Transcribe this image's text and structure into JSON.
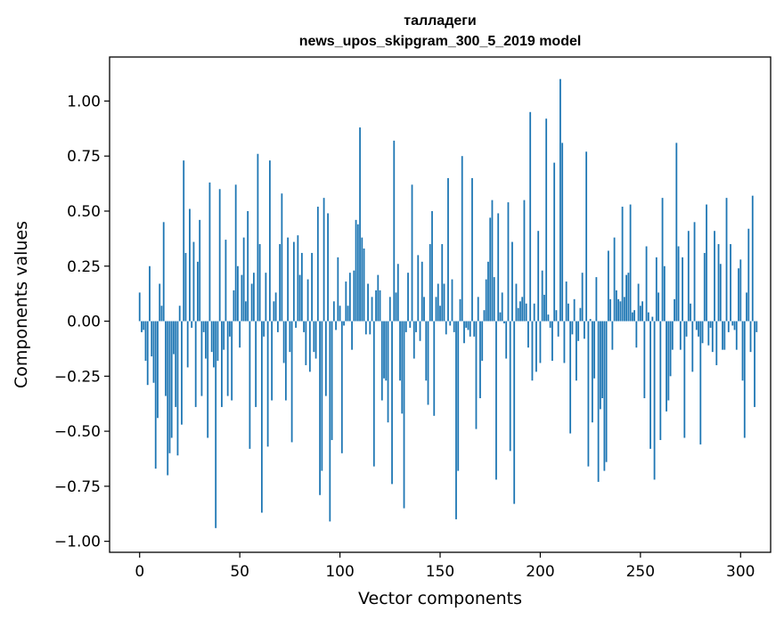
{
  "chart_data": {
    "type": "bar",
    "title": "талладеги",
    "subtitle": "news_upos_skipgram_300_5_2019 model",
    "xlabel": "Vector components",
    "ylabel": "Components values",
    "xlim": [
      -15,
      315
    ],
    "ylim": [
      -1.05,
      1.2
    ],
    "x_ticks": [
      0,
      50,
      100,
      150,
      200,
      250,
      300
    ],
    "x_tick_labels": [
      "0",
      "50",
      "100",
      "150",
      "200",
      "250",
      "300"
    ],
    "y_ticks": [
      -1.0,
      -0.75,
      -0.5,
      -0.25,
      0.0,
      0.25,
      0.5,
      0.75,
      1.0
    ],
    "y_tick_labels": [
      "−1.00",
      "−0.75",
      "−0.50",
      "−0.25",
      "0.00",
      "0.25",
      "0.50",
      "0.75",
      "1.00"
    ],
    "bar_color": "#1f77b4",
    "grid": false,
    "legend": "none",
    "values": [
      0.13,
      -0.05,
      -0.04,
      -0.18,
      -0.29,
      0.25,
      -0.16,
      -0.28,
      -0.67,
      -0.44,
      0.17,
      0.07,
      0.45,
      -0.34,
      -0.7,
      -0.6,
      -0.53,
      -0.15,
      -0.39,
      -0.61,
      0.07,
      -0.47,
      0.73,
      0.31,
      -0.21,
      0.51,
      -0.03,
      0.36,
      -0.39,
      0.27,
      0.46,
      -0.34,
      -0.05,
      -0.17,
      -0.53,
      0.63,
      -0.14,
      -0.21,
      -0.94,
      -0.18,
      0.6,
      -0.39,
      -0.13,
      0.37,
      -0.34,
      -0.07,
      -0.36,
      0.14,
      0.62,
      0.25,
      -0.12,
      0.21,
      0.38,
      0.09,
      0.5,
      -0.58,
      0.17,
      0.22,
      -0.39,
      0.76,
      0.35,
      -0.87,
      -0.07,
      0.22,
      -0.57,
      0.73,
      -0.36,
      0.09,
      0.13,
      -0.05,
      0.35,
      0.58,
      -0.19,
      -0.36,
      0.38,
      -0.14,
      -0.55,
      0.36,
      -0.03,
      0.39,
      0.21,
      0.31,
      -0.05,
      -0.2,
      0.19,
      -0.23,
      0.31,
      -0.14,
      -0.17,
      0.52,
      -0.79,
      -0.68,
      0.56,
      -0.34,
      0.49,
      -0.91,
      -0.54,
      0.09,
      -0.04,
      0.29,
      0.07,
      -0.6,
      -0.02,
      0.18,
      0.07,
      0.22,
      -0.13,
      0.23,
      0.46,
      0.44,
      0.88,
      0.38,
      0.33,
      -0.06,
      0.17,
      -0.06,
      0.11,
      -0.66,
      0.14,
      0.21,
      0.14,
      -0.36,
      -0.26,
      -0.27,
      -0.46,
      0.11,
      -0.74,
      0.82,
      0.13,
      0.26,
      -0.27,
      -0.42,
      -0.85,
      -0.05,
      0.22,
      -0.03,
      0.62,
      -0.17,
      -0.05,
      0.3,
      -0.09,
      0.27,
      0.11,
      -0.27,
      -0.38,
      0.35,
      0.5,
      -0.43,
      0.11,
      0.17,
      0.07,
      0.35,
      0.17,
      -0.06,
      0.65,
      -0.02,
      0.19,
      -0.05,
      -0.9,
      -0.68,
      0.1,
      0.75,
      -0.1,
      -0.03,
      -0.04,
      -0.07,
      0.65,
      -0.07,
      -0.49,
      0.11,
      -0.35,
      -0.18,
      0.05,
      0.19,
      0.27,
      0.47,
      0.55,
      0.2,
      -0.72,
      0.49,
      0.04,
      0.13,
      -0.01,
      -0.17,
      0.54,
      -0.59,
      0.36,
      -0.83,
      0.17,
      0.06,
      0.09,
      0.11,
      0.55,
      0.08,
      -0.12,
      0.95,
      -0.27,
      0.08,
      -0.23,
      0.41,
      -0.19,
      0.23,
      0.12,
      0.92,
      0.03,
      -0.03,
      -0.18,
      0.72,
      0.05,
      -0.07,
      1.1,
      0.81,
      -0.19,
      0.18,
      0.08,
      -0.51,
      -0.06,
      0.1,
      -0.27,
      -0.09,
      0.06,
      0.22,
      -0.08,
      0.77,
      -0.66,
      0.01,
      -0.46,
      -0.26,
      0.2,
      -0.73,
      -0.4,
      -0.35,
      -0.68,
      -0.64,
      0.32,
      0.1,
      -0.13,
      0.38,
      0.14,
      0.1,
      0.09,
      0.52,
      0.11,
      0.21,
      0.22,
      0.53,
      0.04,
      0.05,
      -0.12,
      0.17,
      0.07,
      0.09,
      -0.35,
      0.34,
      0.04,
      -0.58,
      0.02,
      -0.72,
      0.29,
      0.13,
      -0.54,
      0.56,
      0.25,
      -0.41,
      -0.36,
      -0.25,
      -0.13,
      0.1,
      0.81,
      0.34,
      -0.13,
      0.29,
      -0.53,
      -0.07,
      0.41,
      0.08,
      -0.23,
      0.45,
      -0.04,
      -0.07,
      -0.56,
      -0.1,
      0.31,
      0.53,
      -0.11,
      -0.03,
      -0.14,
      0.41,
      -0.2,
      0.35,
      0.26,
      -0.13,
      -0.13,
      0.56,
      -0.05,
      0.35,
      -0.02,
      -0.04,
      -0.13,
      0.24,
      0.28,
      -0.27,
      -0.53,
      0.13,
      0.42,
      -0.14,
      0.57,
      -0.39,
      -0.05
    ]
  }
}
